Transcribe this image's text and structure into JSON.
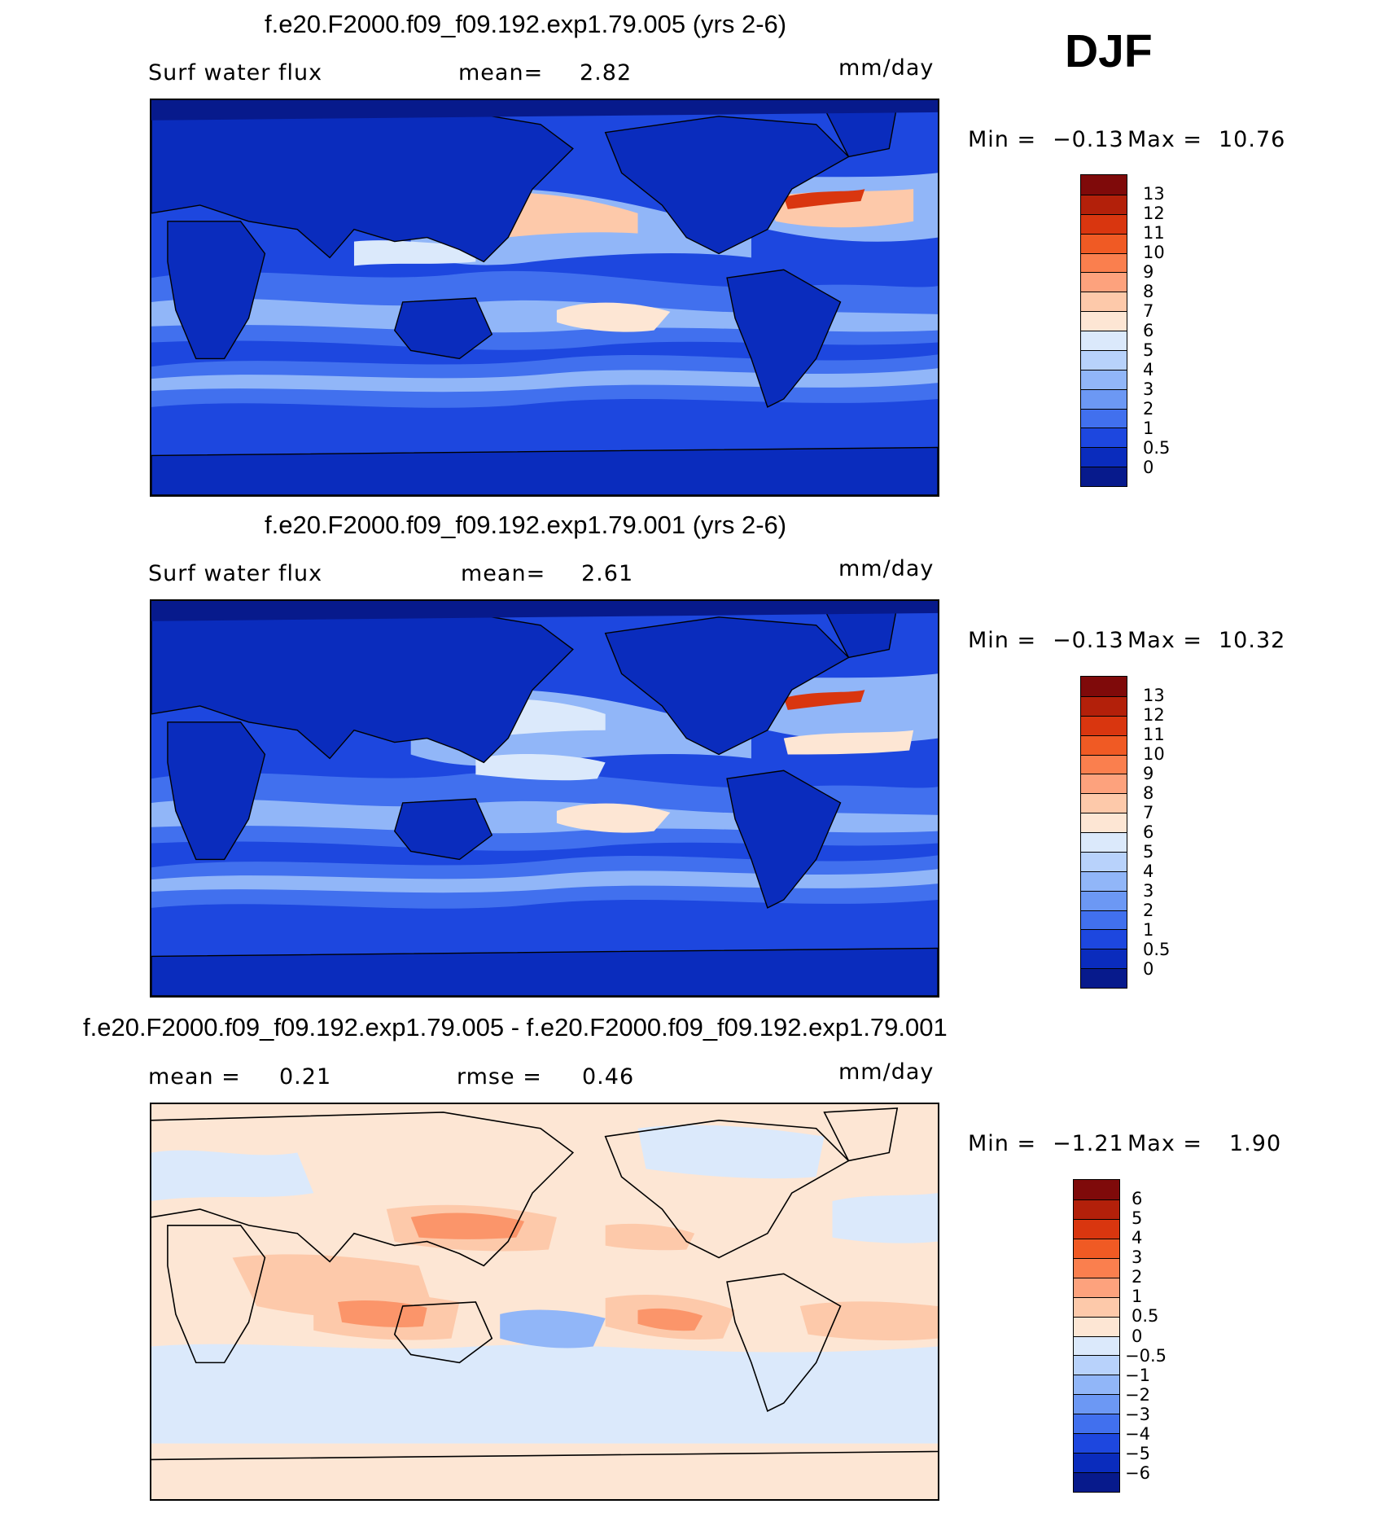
{
  "season": "DJF",
  "panels": [
    {
      "title": "f.e20.F2000.f09_f09.192.exp1.79.005 (yrs 2-6)",
      "variable": "Surf water flux",
      "stat_label": "mean=",
      "stat_value": "2.82",
      "units": "mm/day",
      "min_label": "Min =",
      "min_value": "−0.13",
      "max_label": "Max =",
      "max_value": "10.76",
      "colorbar": {
        "labels": [
          "13",
          "12",
          "11",
          "10",
          "9",
          "8",
          "7",
          "6",
          "5",
          "4",
          "3",
          "2",
          "1",
          "0.5",
          "0"
        ],
        "colors": [
          "#7f0a0a",
          "#b3200a",
          "#d9360f",
          "#f05a24",
          "#fa7f4e",
          "#fda27d",
          "#fdc9aa",
          "#fde6d4",
          "#dbe9fb",
          "#b8d2fb",
          "#91b6f8",
          "#6c98f4",
          "#4170ee",
          "#1d47df",
          "#0a2cbd",
          "#071a8c"
        ]
      }
    },
    {
      "title": "f.e20.F2000.f09_f09.192.exp1.79.001 (yrs 2-6)",
      "variable": "Surf water flux",
      "stat_label": "mean=",
      "stat_value": "2.61",
      "units": "mm/day",
      "min_label": "Min =",
      "min_value": "−0.13",
      "max_label": "Max =",
      "max_value": "10.32",
      "colorbar": {
        "labels": [
          "13",
          "12",
          "11",
          "10",
          "9",
          "8",
          "7",
          "6",
          "5",
          "4",
          "3",
          "2",
          "1",
          "0.5",
          "0"
        ],
        "colors": [
          "#7f0a0a",
          "#b3200a",
          "#d9360f",
          "#f05a24",
          "#fa7f4e",
          "#fda27d",
          "#fdc9aa",
          "#fde6d4",
          "#dbe9fb",
          "#b8d2fb",
          "#91b6f8",
          "#6c98f4",
          "#4170ee",
          "#1d47df",
          "#0a2cbd",
          "#071a8c"
        ]
      }
    },
    {
      "title": "f.e20.F2000.f09_f09.192.exp1.79.005 - f.e20.F2000.f09_f09.192.exp1.79.001",
      "stat_label": "mean =",
      "stat_value": "0.21",
      "stat2_label": "rmse =",
      "stat2_value": "0.46",
      "units": "mm/day",
      "min_label": "Min =",
      "min_value": "−1.21",
      "max_label": "Max =",
      "max_value": "1.90",
      "colorbar": {
        "labels": [
          "6",
          "5",
          "4",
          "3",
          "2",
          "1",
          "0.5",
          "0",
          "−0.5",
          "−1",
          "−2",
          "−3",
          "−4",
          "−5",
          "−6"
        ],
        "colors": [
          "#7f0a0a",
          "#b3200a",
          "#d9360f",
          "#f05a24",
          "#fa7f4e",
          "#fda27d",
          "#fdc9aa",
          "#fde6d4",
          "#dbe9fb",
          "#b8d2fb",
          "#91b6f8",
          "#6c98f4",
          "#4170ee",
          "#1d47df",
          "#0a2cbd",
          "#071a8c"
        ]
      }
    }
  ],
  "map_colors": {
    "deep": "#0a2cbd",
    "dark": "#071a8c",
    "mid": "#1d47df",
    "light": "#4170ee",
    "pale": "#91b6f8",
    "paleblue": "#dbe9fb",
    "peach": "#fde6d4",
    "salmon": "#fdc9aa",
    "orange": "#fa7f4e",
    "red": "#d9360f"
  }
}
